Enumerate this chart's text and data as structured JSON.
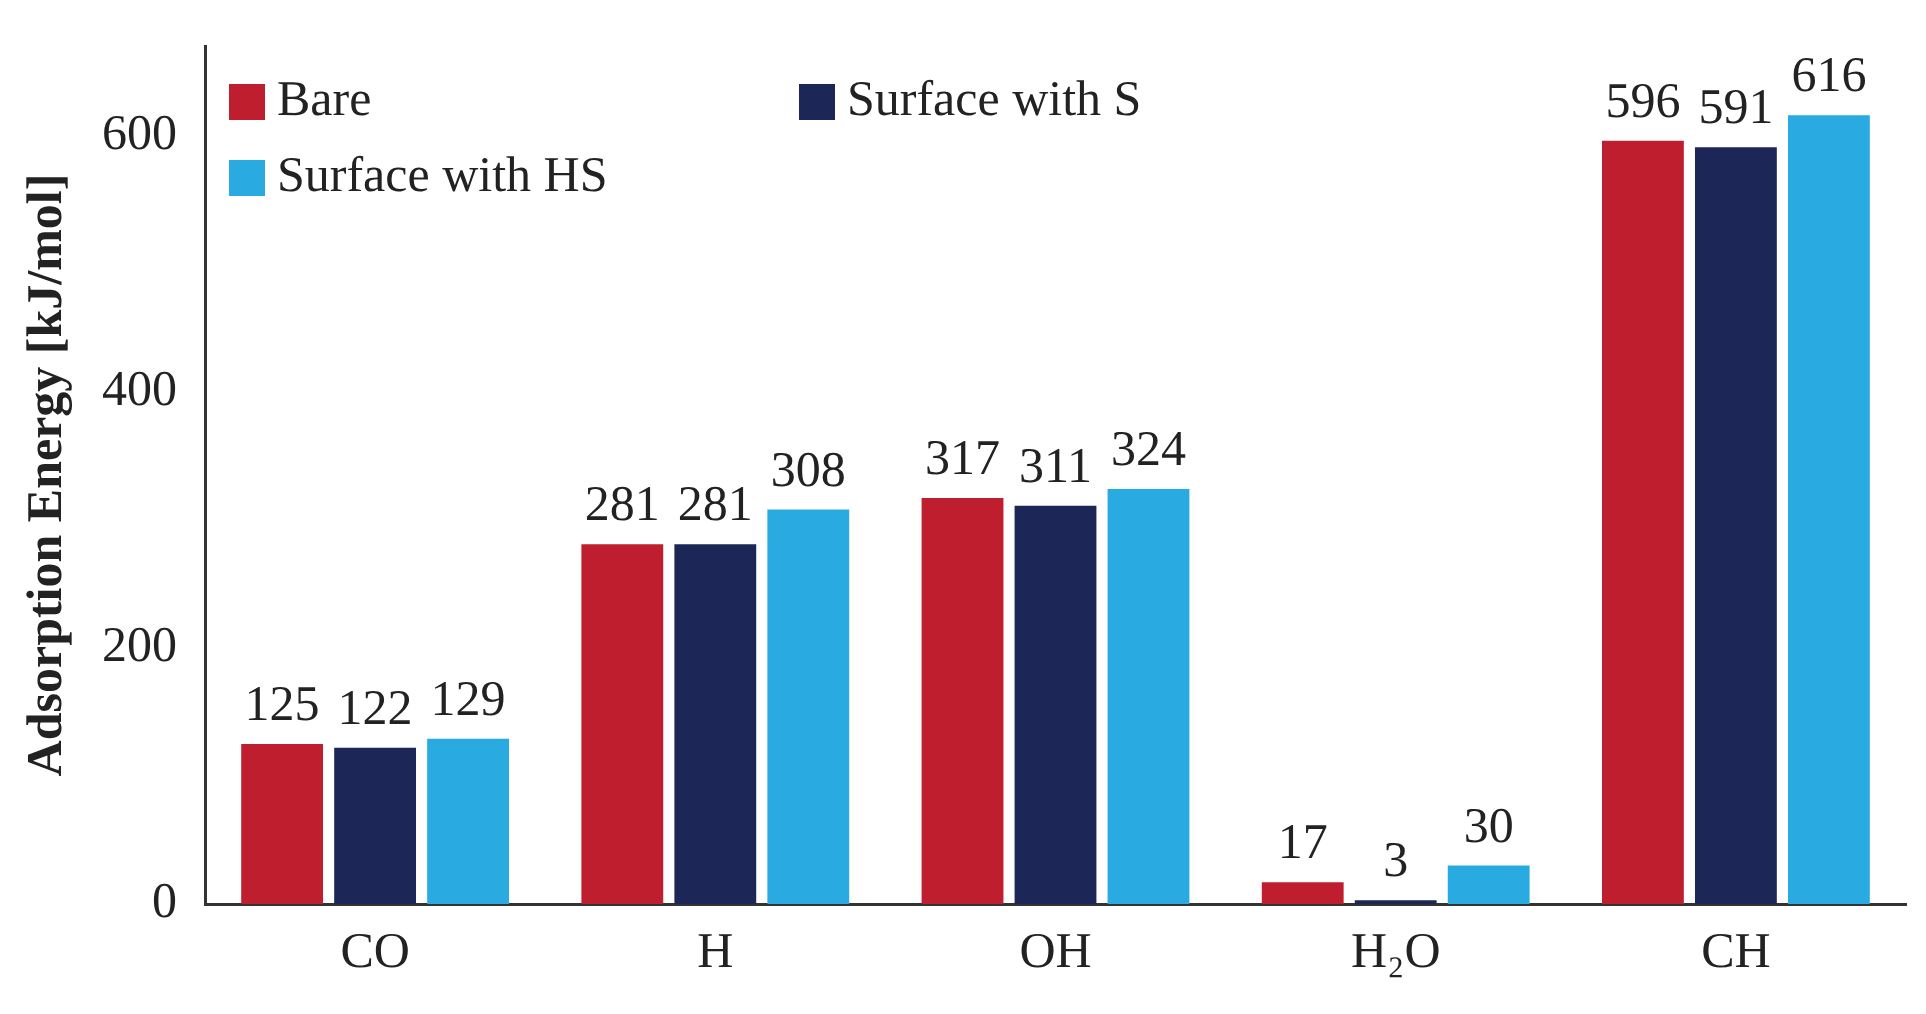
{
  "chart_data": {
    "type": "bar",
    "ylabel": "Adsorption Energy [kJ/mol]",
    "categories": [
      "CO",
      "H",
      "OH",
      "H₂O",
      "CH"
    ],
    "series": [
      {
        "name": "Bare",
        "color": "#be1e2d",
        "values": [
          125,
          281,
          317,
          17,
          596
        ]
      },
      {
        "name": "Surface with S",
        "color": "#1c2657",
        "values": [
          122,
          281,
          311,
          3,
          591
        ]
      },
      {
        "name": "Surface with HS",
        "color": "#29abe2",
        "values": [
          129,
          308,
          324,
          30,
          616
        ]
      }
    ],
    "ylim": [
      0,
      670
    ],
    "yticks": [
      0,
      200,
      400,
      600
    ],
    "grid": false,
    "legend": "top left",
    "data_labels": true
  }
}
